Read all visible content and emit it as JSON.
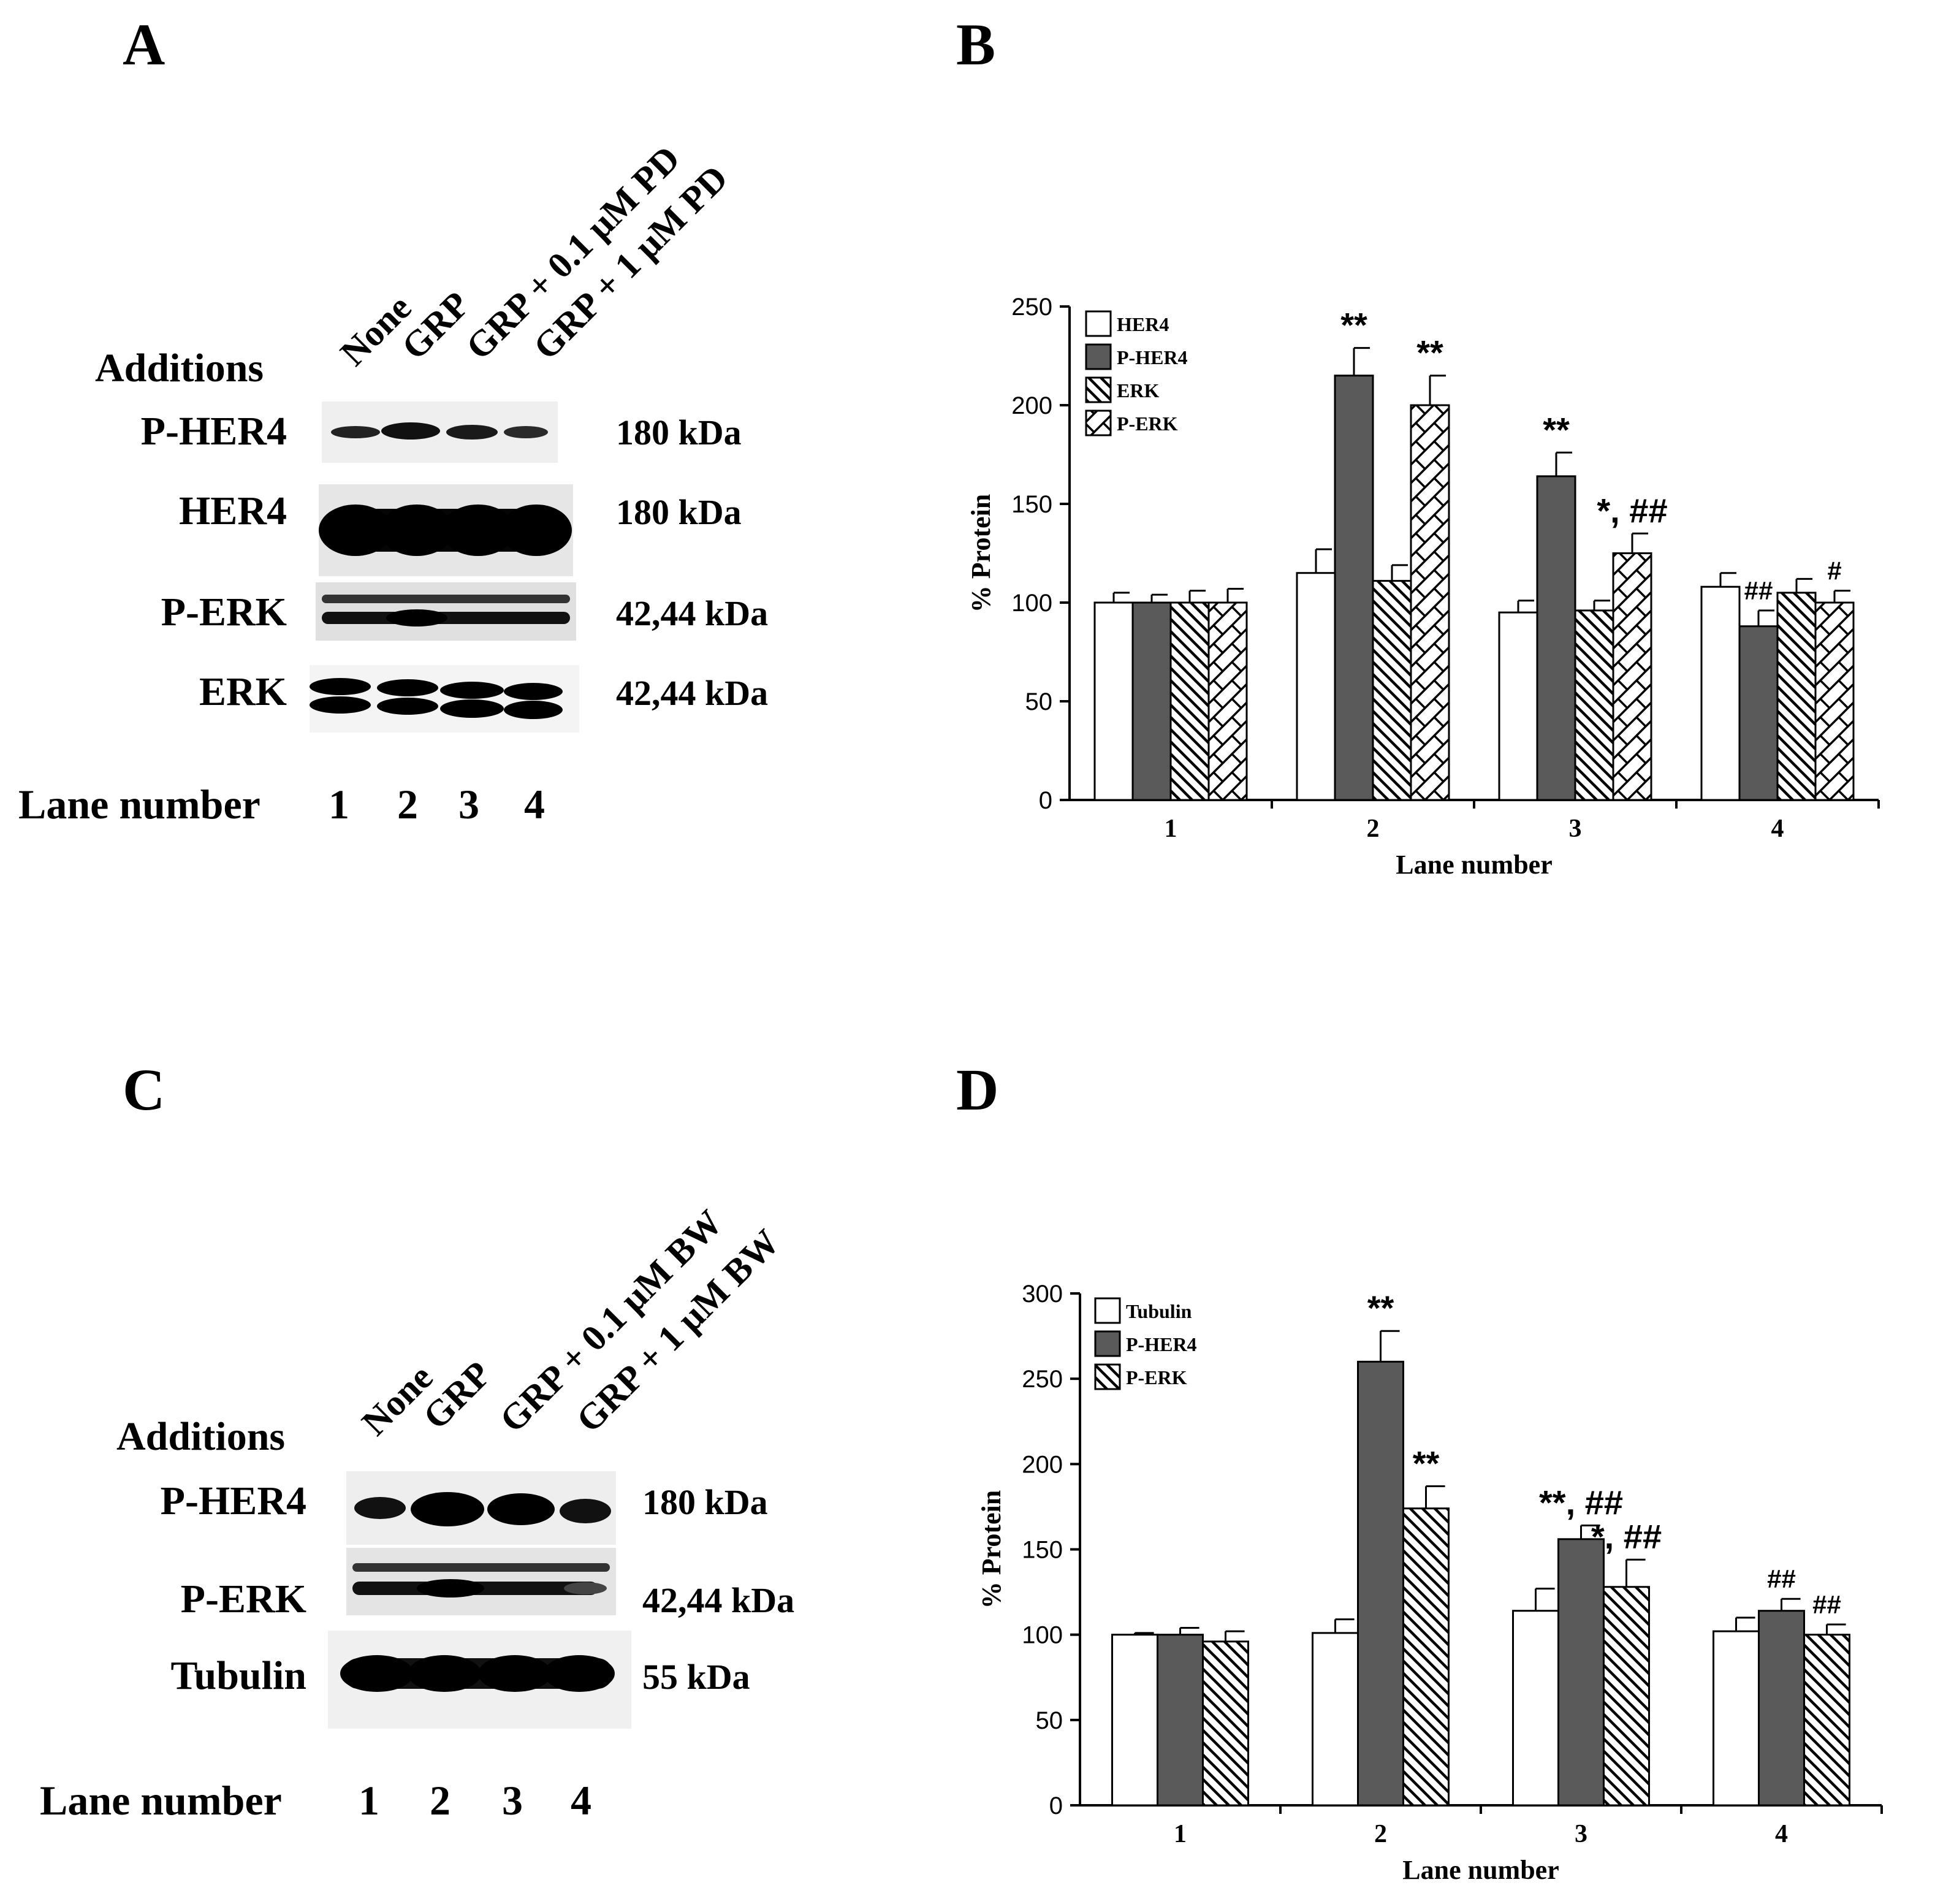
{
  "panels": {
    "A": {
      "letter": "A",
      "additions_label": "Additions",
      "lane_label": "Lane number",
      "conditions": [
        "None",
        "GRP",
        "GRP + 0.1 μM PD",
        "GRP + 1 μM PD"
      ],
      "lanes": [
        "1",
        "2",
        "3",
        "4"
      ],
      "rows": [
        {
          "protein": "P-HER4",
          "size": "180 kDa"
        },
        {
          "protein": "HER4",
          "size": "180 kDa"
        },
        {
          "protein": "P-ERK",
          "size": "42,44 kDa"
        },
        {
          "protein": "ERK",
          "size": "42,44 kDa"
        }
      ]
    },
    "B": {
      "letter": "B"
    },
    "C": {
      "letter": "C",
      "additions_label": "Additions",
      "lane_label": "Lane number",
      "conditions": [
        "None",
        "GRP",
        "GRP + 0.1 μM BW",
        "GRP + 1 μM BW"
      ],
      "lanes": [
        "1",
        "2",
        "3",
        "4"
      ],
      "rows": [
        {
          "protein": "P-HER4",
          "size": "180 kDa"
        },
        {
          "protein": "P-ERK",
          "size": "42,44 kDa"
        },
        {
          "protein": "Tubulin",
          "size": "55 kDa"
        }
      ]
    },
    "D": {
      "letter": "D"
    }
  },
  "chart_data": [
    {
      "panel": "B",
      "type": "bar",
      "xlabel": "Lane number",
      "ylabel": "% Protein",
      "ylim": [
        0,
        250
      ],
      "yticks": [
        "0",
        "50",
        "100",
        "150",
        "200",
        "250"
      ],
      "categories": [
        "1",
        "2",
        "3",
        "4"
      ],
      "legend_position": "top-left",
      "series": [
        {
          "name": "HER4",
          "pattern": "white",
          "values": [
            100,
            115,
            95,
            108
          ],
          "errors": [
            5,
            12,
            6,
            7
          ],
          "annotations": [
            "",
            "",
            "",
            ""
          ]
        },
        {
          "name": "P-HER4",
          "pattern": "gray",
          "values": [
            100,
            215,
            164,
            88
          ],
          "errors": [
            4,
            14,
            12,
            8
          ],
          "annotations": [
            "",
            "**",
            "**",
            "##"
          ]
        },
        {
          "name": "ERK",
          "pattern": "diag",
          "values": [
            100,
            111,
            96,
            105
          ],
          "errors": [
            6,
            8,
            5,
            7
          ],
          "annotations": [
            "",
            "",
            "",
            ""
          ]
        },
        {
          "name": "P-ERK",
          "pattern": "cross",
          "values": [
            100,
            200,
            125,
            100
          ],
          "errors": [
            7,
            15,
            10,
            6
          ],
          "annotations": [
            "",
            "**",
            "*, ##",
            "#"
          ]
        }
      ]
    },
    {
      "panel": "D",
      "type": "bar",
      "xlabel": "Lane number",
      "ylabel": "% Protein",
      "ylim": [
        0,
        300
      ],
      "yticks": [
        "0",
        "50",
        "100",
        "150",
        "200",
        "250",
        "300"
      ],
      "categories": [
        "1",
        "2",
        "3",
        "4"
      ],
      "legend_position": "top-left",
      "series": [
        {
          "name": "Tubulin",
          "pattern": "white",
          "values": [
            100,
            101,
            114,
            102
          ],
          "errors": [
            1,
            8,
            13,
            8
          ],
          "annotations": [
            "",
            "",
            "",
            ""
          ]
        },
        {
          "name": "P-HER4",
          "pattern": "gray",
          "values": [
            100,
            260,
            156,
            114
          ],
          "errors": [
            4,
            18,
            8,
            7
          ],
          "annotations": [
            "",
            "**",
            "**, ##",
            "##"
          ]
        },
        {
          "name": "P-ERK",
          "pattern": "diag",
          "values": [
            96,
            174,
            128,
            100
          ],
          "errors": [
            6,
            13,
            16,
            6
          ],
          "annotations": [
            "",
            "**",
            "*, ##",
            "##"
          ]
        }
      ]
    }
  ]
}
